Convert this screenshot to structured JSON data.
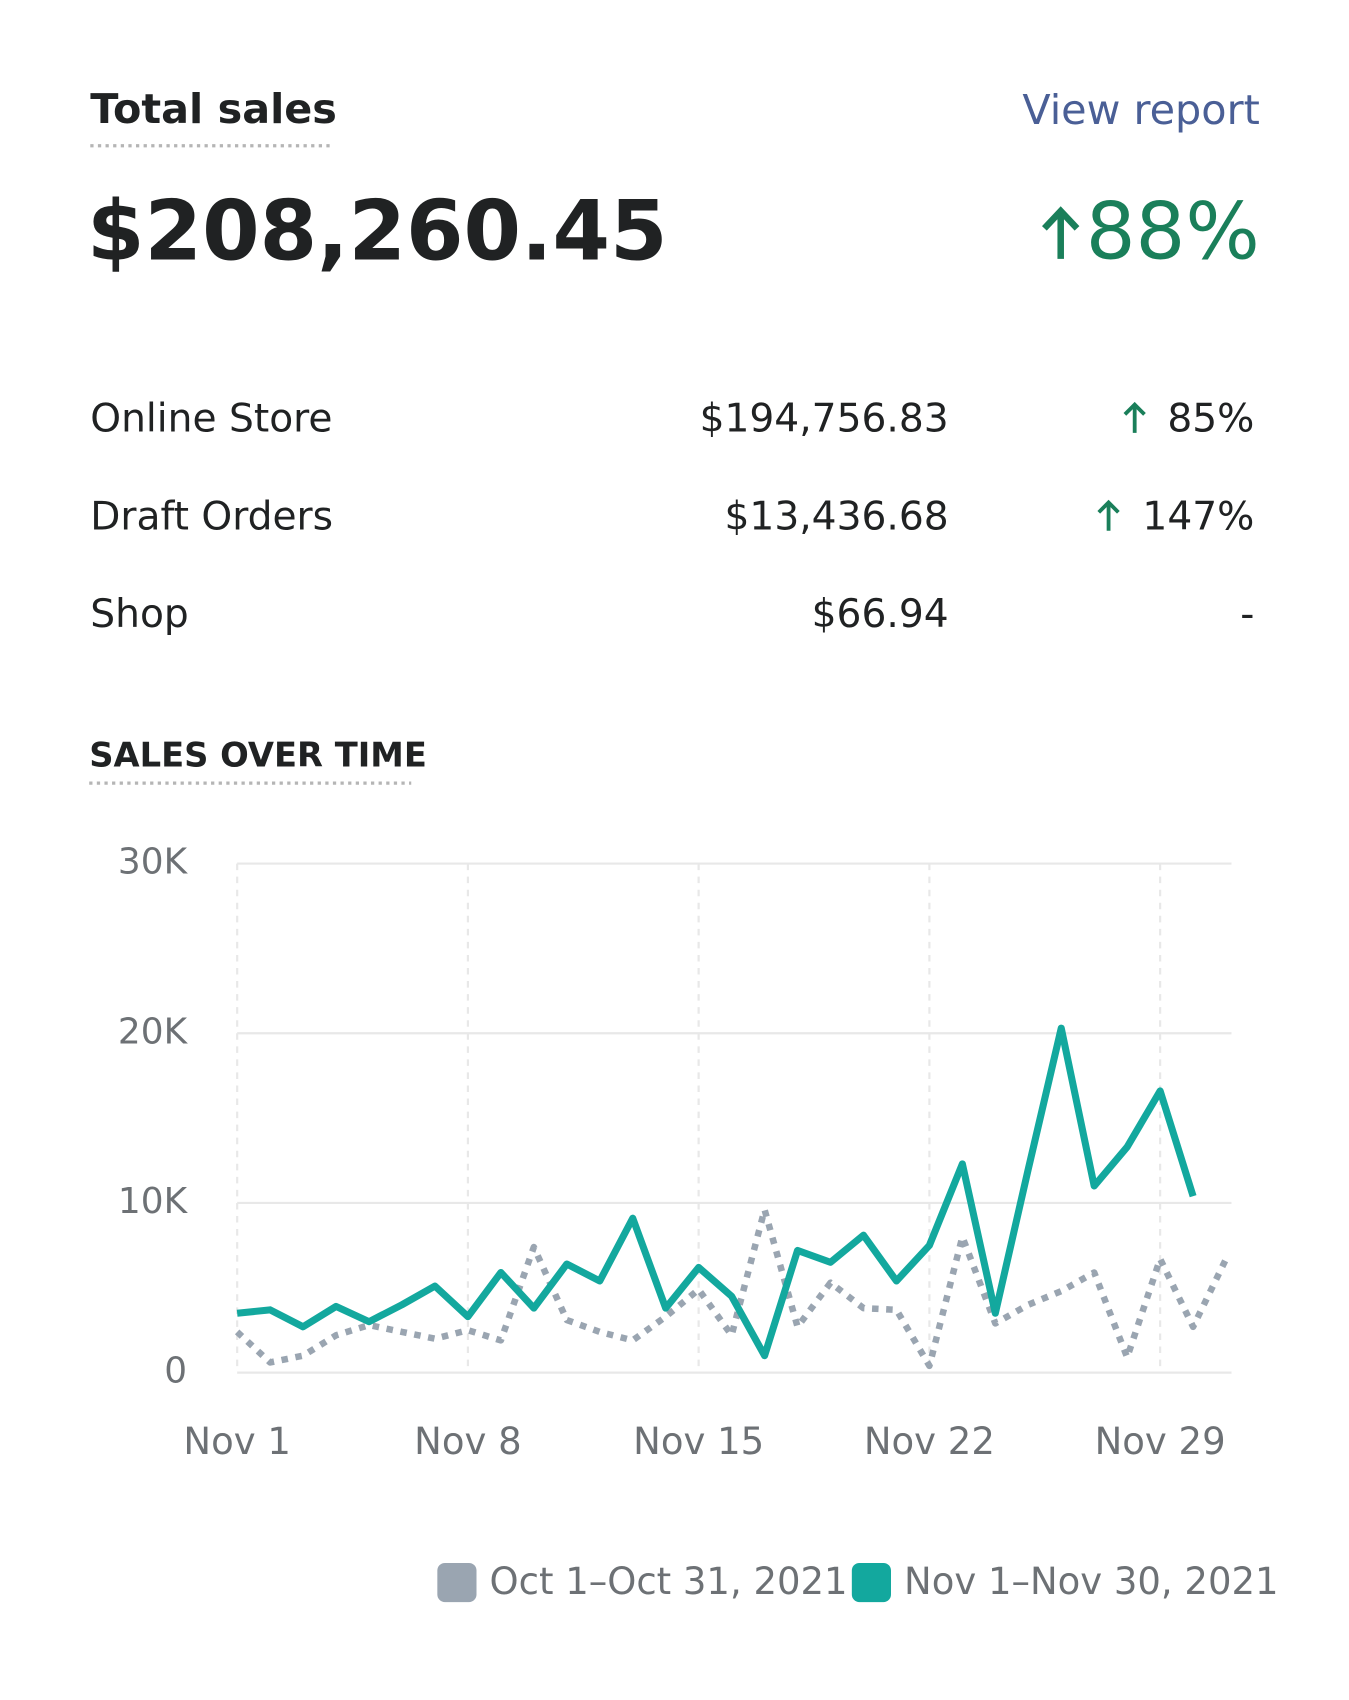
{
  "header": {
    "title": "Total sales",
    "link": "View report",
    "total": "$208,260.45",
    "change": "88%"
  },
  "breakdown": [
    {
      "name": "Online Store",
      "amount": "$194,756.83",
      "change": "85%"
    },
    {
      "name": "Draft Orders",
      "amount": "$13,436.68",
      "change": "147%"
    },
    {
      "name": "Shop",
      "amount": "$66.94",
      "change": "-"
    }
  ],
  "chart_data": {
    "type": "line",
    "title": "SALES OVER TIME",
    "categories": [
      "Nov 1",
      null,
      null,
      null,
      null,
      null,
      null,
      "Nov 8",
      null,
      null,
      null,
      null,
      null,
      null,
      "Nov 15",
      null,
      null,
      null,
      null,
      null,
      null,
      "Nov 22",
      null,
      null,
      null,
      null,
      null,
      null,
      "Nov 29",
      null,
      null
    ],
    "series": [
      {
        "name": "Oct 1–Oct 31, 2021",
        "color": "#9aa5b1",
        "dashed": true,
        "values": [
          2400,
          600,
          1000,
          2200,
          2800,
          2400,
          2000,
          2500,
          1900,
          7400,
          3100,
          2400,
          1900,
          3300,
          4900,
          2200,
          9600,
          2700,
          5300,
          3800,
          3700,
          400,
          8000,
          2900,
          4000,
          4800,
          5900,
          900,
          6700,
          2700,
          6700
        ]
      },
      {
        "name": "Nov 1–Nov 30, 2021",
        "color": "#13a89e",
        "dashed": false,
        "values": [
          3500,
          3700,
          2700,
          3900,
          3000,
          4000,
          5100,
          3300,
          5900,
          3800,
          6400,
          5400,
          9100,
          3800,
          6200,
          4500,
          1000,
          7200,
          6500,
          8100,
          5400,
          7500,
          12300,
          3500,
          12000,
          20300,
          11000,
          13300,
          16600,
          10400,
          null
        ]
      }
    ],
    "ylim": [
      0,
      30000
    ],
    "yticks": [
      {
        "value": 0,
        "label": "0"
      },
      {
        "value": 10000,
        "label": "10K"
      },
      {
        "value": 20000,
        "label": "20K"
      },
      {
        "value": 30000,
        "label": "30K"
      }
    ],
    "grid": true
  }
}
